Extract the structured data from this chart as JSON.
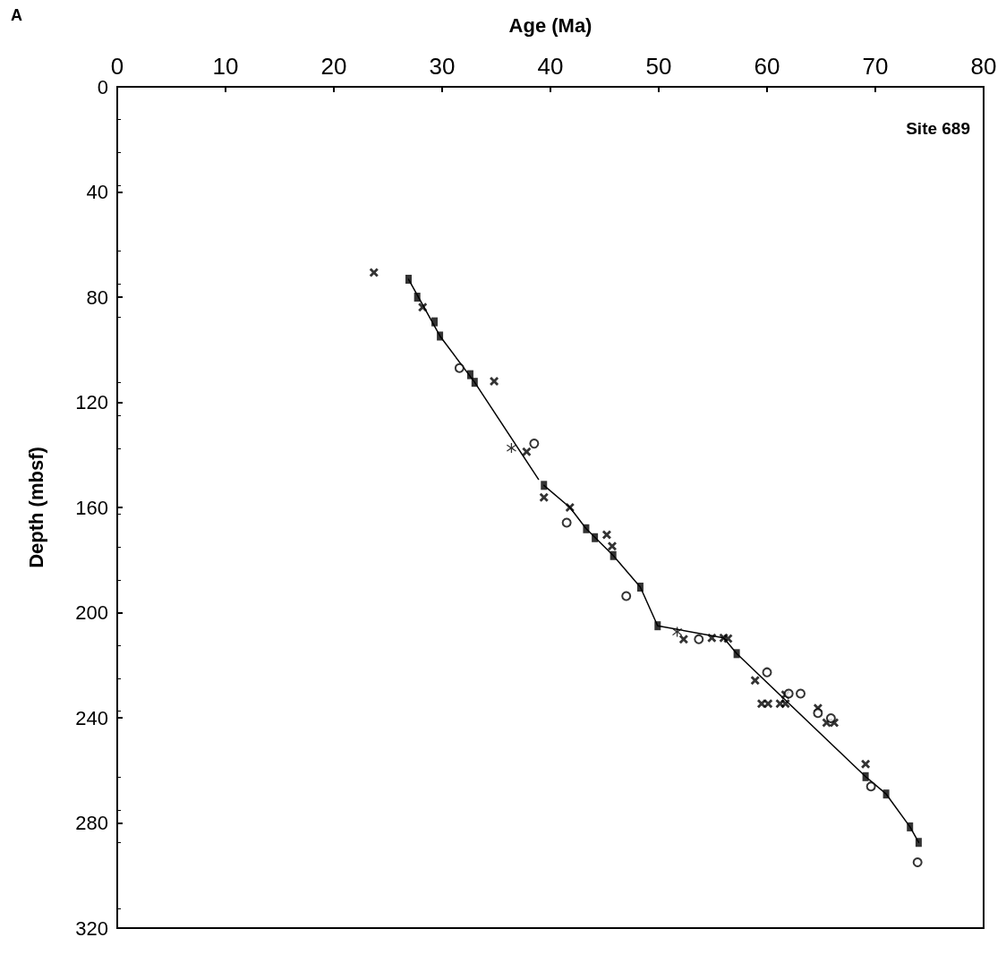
{
  "chart_data": {
    "type": "scatter",
    "xlabel": "Age (Ma)",
    "ylabel": "Depth (mbsf)",
    "annotations": [
      "A",
      "Site 689"
    ],
    "xlim": [
      0,
      80
    ],
    "xticks": [
      0,
      10,
      20,
      30,
      40,
      50,
      60,
      70,
      80
    ],
    "ylim": [
      320,
      0
    ],
    "yticks": [
      0,
      40,
      80,
      120,
      160,
      200,
      240,
      280,
      320
    ],
    "grid": false,
    "series": [
      {
        "type": "line",
        "color": "#000000",
        "marker": "none",
        "line_style": "solid",
        "x": [
          26.9,
          29.8,
          33.0,
          38.9,
          39.1,
          39.4,
          41.8,
          43.3,
          45.8,
          48.3,
          49.9,
          56.0,
          57.2,
          69.1,
          71.0,
          73.2,
          74.0
        ],
        "values": [
          73.2,
          94.8,
          112.4,
          149.3,
          null,
          151.6,
          160.0,
          168.1,
          178.3,
          190.3,
          205.0,
          209.6,
          215.6,
          262.4,
          269.0,
          281.5,
          287.4
        ]
      },
      {
        "type": "scatter",
        "color": "#000000",
        "marker": "square",
        "x": [
          26.9,
          27.7,
          29.3,
          29.8,
          32.6,
          33.0,
          39.4,
          43.3,
          44.1,
          45.8,
          48.3,
          49.9,
          57.2,
          69.1,
          71.0,
          73.2,
          74.0
        ],
        "values": [
          73.2,
          80.0,
          89.4,
          94.8,
          109.5,
          112.4,
          151.6,
          168.1,
          171.5,
          178.3,
          190.3,
          205.0,
          215.6,
          262.4,
          269.0,
          281.5,
          287.4
        ]
      },
      {
        "type": "scatter",
        "color": "#000000",
        "marker": "cross",
        "x": [
          23.7,
          28.2,
          34.8,
          37.8,
          39.4,
          41.8,
          45.2,
          45.7,
          52.3,
          54.9,
          56.0,
          56.4,
          58.9,
          59.5,
          60.1,
          61.2,
          61.7,
          61.7,
          64.7,
          65.5,
          66.2,
          69.1
        ],
        "values": [
          70.6,
          83.8,
          112.0,
          138.8,
          156.2,
          160.0,
          170.4,
          174.7,
          210.1,
          209.6,
          209.6,
          209.9,
          225.8,
          234.6,
          234.6,
          234.6,
          234.6,
          231.2,
          236.3,
          241.9,
          241.9,
          257.6
        ]
      },
      {
        "type": "scatter",
        "color": "#000000",
        "marker": "circle",
        "x": [
          31.6,
          38.5,
          41.5,
          47.0,
          53.7,
          60.0,
          62.0,
          63.1,
          64.7,
          65.9,
          69.6,
          73.9
        ],
        "values": [
          107.0,
          135.7,
          165.8,
          193.7,
          210.1,
          222.7,
          230.8,
          230.8,
          238.2,
          240.2,
          266.1,
          295.0
        ]
      },
      {
        "type": "scatter",
        "color": "#000000",
        "marker": "star",
        "x": [
          36.4,
          51.7
        ],
        "values": [
          137.4,
          207.3
        ]
      }
    ]
  }
}
